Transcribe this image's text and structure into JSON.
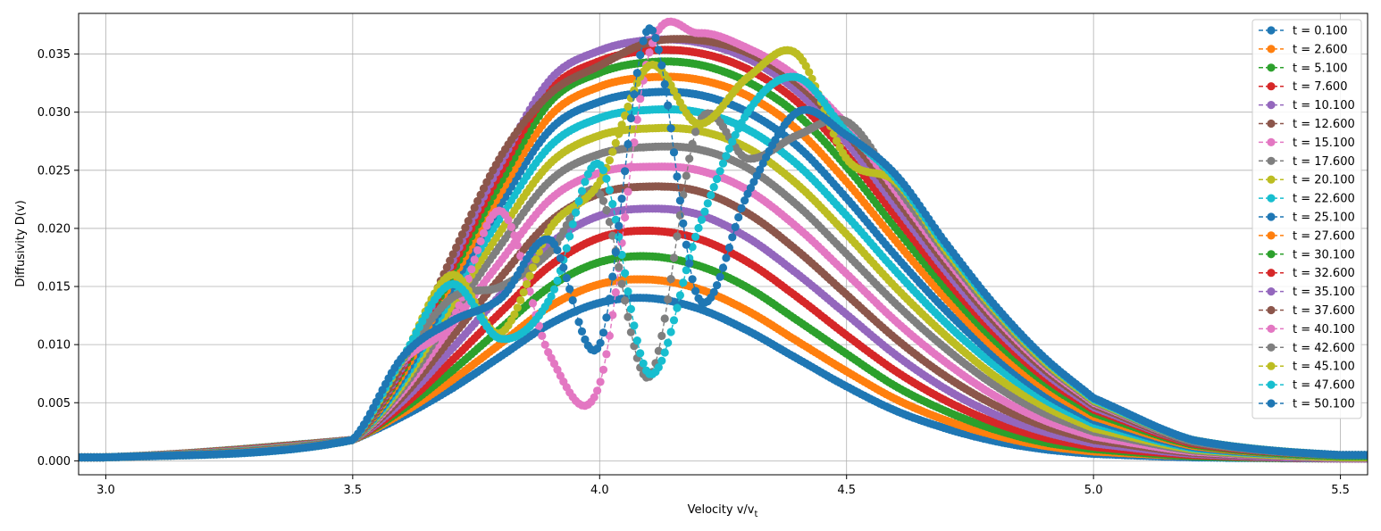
{
  "chart_data": {
    "type": "line",
    "title": "",
    "xlabel": "Velocity v/v",
    "xlabel_sub": "t",
    "ylabel": "Diffusivity D(v)",
    "xlim": [
      2.945,
      5.555
    ],
    "ylim": [
      -0.0012,
      0.0385
    ],
    "xticks": [
      3.0,
      3.5,
      4.0,
      4.5,
      5.0,
      5.5
    ],
    "xtick_labels": [
      "3.0",
      "3.5",
      "4.0",
      "4.5",
      "5.0",
      "5.5"
    ],
    "yticks": [
      0.0,
      0.005,
      0.01,
      0.015,
      0.02,
      0.025,
      0.03,
      0.035
    ],
    "ytick_labels": [
      "0.000",
      "0.005",
      "0.010",
      "0.015",
      "0.020",
      "0.025",
      "0.030",
      "0.035"
    ],
    "grid": true,
    "legend_position": "top-right",
    "x": [
      3.0,
      3.5,
      3.6,
      3.7,
      3.8,
      3.9,
      4.0,
      4.1,
      4.2,
      4.3,
      4.4,
      4.5,
      4.6,
      4.7,
      4.8,
      4.9,
      5.0,
      5.2,
      5.5
    ],
    "series": [
      {
        "name": "t = 0.100",
        "color": "#1f77b4",
        "values": [
          0.0003,
          0.0018,
          0.0038,
          0.0062,
          0.009,
          0.0118,
          0.0136,
          0.014,
          0.0131,
          0.0112,
          0.0088,
          0.0064,
          0.0043,
          0.0028,
          0.0017,
          0.001,
          0.0006,
          0.0003,
          0.0002
        ]
      },
      {
        "name": "t = 2.600",
        "color": "#ff7f0e",
        "values": [
          0.0003,
          0.0018,
          0.0041,
          0.0069,
          0.0101,
          0.0133,
          0.0152,
          0.0156,
          0.0148,
          0.0129,
          0.0103,
          0.0077,
          0.0053,
          0.0035,
          0.0022,
          0.0013,
          0.0008,
          0.0004,
          0.0002
        ]
      },
      {
        "name": "t = 5.100",
        "color": "#2ca02c",
        "values": [
          0.0003,
          0.0018,
          0.0044,
          0.0077,
          0.0114,
          0.015,
          0.0171,
          0.0176,
          0.0168,
          0.0149,
          0.0121,
          0.0092,
          0.0064,
          0.0043,
          0.0027,
          0.0016,
          0.001,
          0.0004,
          0.0002
        ]
      },
      {
        "name": "t = 7.600",
        "color": "#d62728",
        "values": [
          0.0003,
          0.0018,
          0.0047,
          0.0086,
          0.0128,
          0.0168,
          0.0192,
          0.0198,
          0.0191,
          0.0171,
          0.0141,
          0.0108,
          0.0077,
          0.0052,
          0.0033,
          0.002,
          0.0012,
          0.0005,
          0.0002
        ]
      },
      {
        "name": "t = 10.100",
        "color": "#9467bd",
        "values": [
          0.0003,
          0.0018,
          0.0051,
          0.0096,
          0.0143,
          0.0187,
          0.0211,
          0.0217,
          0.0212,
          0.0192,
          0.0161,
          0.0126,
          0.0091,
          0.0062,
          0.004,
          0.0025,
          0.0015,
          0.0006,
          0.0002
        ]
      },
      {
        "name": "t = 12.600",
        "color": "#8c564b",
        "values": [
          0.0003,
          0.0018,
          0.0055,
          0.0106,
          0.0158,
          0.0206,
          0.023,
          0.0236,
          0.0232,
          0.0213,
          0.0181,
          0.0143,
          0.0105,
          0.0073,
          0.0048,
          0.003,
          0.0018,
          0.0007,
          0.0003
        ]
      },
      {
        "name": "t = 15.100",
        "color": "#e377c2",
        "values": [
          0.0003,
          0.0018,
          0.0059,
          0.0116,
          0.0172,
          0.0225,
          0.0248,
          0.0253,
          0.025,
          0.0233,
          0.0201,
          0.0161,
          0.012,
          0.0085,
          0.0056,
          0.0035,
          0.0021,
          0.0008,
          0.0003
        ]
      },
      {
        "name": "t = 17.600",
        "color": "#7f7f7f",
        "values": [
          0.0003,
          0.0018,
          0.0062,
          0.0125,
          0.0186,
          0.0241,
          0.0264,
          0.027,
          0.0268,
          0.0252,
          0.022,
          0.0178,
          0.0135,
          0.0097,
          0.0065,
          0.0041,
          0.0025,
          0.0009,
          0.0003
        ]
      },
      {
        "name": "t = 20.100",
        "color": "#bcbd22",
        "values": [
          0.0003,
          0.0018,
          0.0065,
          0.0133,
          0.0198,
          0.0256,
          0.028,
          0.0286,
          0.0284,
          0.0269,
          0.0238,
          0.0195,
          0.0149,
          0.0108,
          0.0073,
          0.0047,
          0.0028,
          0.001,
          0.0003
        ]
      },
      {
        "name": "t = 22.600",
        "color": "#17becf",
        "values": [
          0.0003,
          0.0018,
          0.0068,
          0.0141,
          0.021,
          0.0271,
          0.0295,
          0.0302,
          0.03,
          0.0285,
          0.0255,
          0.0211,
          0.0163,
          0.0119,
          0.0082,
          0.0053,
          0.0032,
          0.0011,
          0.0004
        ]
      },
      {
        "name": "t = 25.100",
        "color": "#1f77b4",
        "values": [
          0.0003,
          0.0018,
          0.0071,
          0.0148,
          0.0221,
          0.0285,
          0.0309,
          0.0317,
          0.0315,
          0.03,
          0.0271,
          0.0226,
          0.0176,
          0.013,
          0.009,
          0.0058,
          0.0035,
          0.0012,
          0.0004
        ]
      },
      {
        "name": "t = 27.600",
        "color": "#ff7f0e",
        "values": [
          0.0003,
          0.0018,
          0.0074,
          0.0154,
          0.0231,
          0.0297,
          0.0322,
          0.033,
          0.0328,
          0.0314,
          0.0285,
          0.024,
          0.0189,
          0.014,
          0.0097,
          0.0063,
          0.0038,
          0.0013,
          0.0004
        ]
      },
      {
        "name": "t = 30.100",
        "color": "#2ca02c",
        "values": [
          0.0003,
          0.0018,
          0.0077,
          0.016,
          0.024,
          0.0309,
          0.0334,
          0.0343,
          0.0341,
          0.0326,
          0.0298,
          0.0253,
          0.02,
          0.0149,
          0.0104,
          0.0068,
          0.0041,
          0.0014,
          0.0004
        ]
      },
      {
        "name": "t = 32.600",
        "color": "#d62728",
        "values": [
          0.0003,
          0.0018,
          0.0079,
          0.0165,
          0.0249,
          0.0319,
          0.0344,
          0.0353,
          0.0351,
          0.0337,
          0.0309,
          0.0264,
          0.021,
          0.0157,
          0.011,
          0.0072,
          0.0044,
          0.0015,
          0.0005
        ]
      },
      {
        "name": "t = 35.100",
        "color": "#9467bd",
        "values": [
          0.0003,
          0.0018,
          0.0081,
          0.017,
          0.0256,
          0.0328,
          0.0353,
          0.0362,
          0.036,
          0.0346,
          0.0318,
          0.0274,
          0.0219,
          0.0164,
          0.0115,
          0.0076,
          0.0046,
          0.0016,
          0.0005
        ]
      },
      {
        "name": "t = 37.600",
        "color": "#8c564b",
        "values": [
          0.0003,
          0.0018,
          0.0083,
          0.0175,
          0.0262,
          0.0316,
          0.034,
          0.036,
          0.0362,
          0.0351,
          0.0325,
          0.0282,
          0.0226,
          0.017,
          0.012,
          0.0079,
          0.0048,
          0.0016,
          0.0005
        ]
      },
      {
        "name": "t = 40.100",
        "color": "#e377c2",
        "values": [
          0.0003,
          0.0018,
          0.0085,
          0.012,
          0.0215,
          0.009,
          0.0066,
          0.035,
          0.0368,
          0.0355,
          0.033,
          0.0289,
          0.0232,
          0.0175,
          0.0124,
          0.0082,
          0.005,
          0.0017,
          0.0005
        ]
      },
      {
        "name": "t = 42.600",
        "color": "#7f7f7f",
        "values": [
          0.0003,
          0.0018,
          0.0086,
          0.014,
          0.015,
          0.018,
          0.023,
          0.0072,
          0.029,
          0.026,
          0.028,
          0.0292,
          0.0237,
          0.0179,
          0.0127,
          0.0084,
          0.0051,
          0.0017,
          0.0005
        ]
      },
      {
        "name": "t = 45.100",
        "color": "#bcbd22",
        "values": [
          0.0003,
          0.0018,
          0.0087,
          0.016,
          0.011,
          0.02,
          0.024,
          0.034,
          0.029,
          0.033,
          0.035,
          0.026,
          0.024,
          0.0182,
          0.013,
          0.0086,
          0.0052,
          0.0018,
          0.0005
        ]
      },
      {
        "name": "t = 47.600",
        "color": "#17becf",
        "values": [
          0.0003,
          0.0018,
          0.0088,
          0.0152,
          0.0105,
          0.014,
          0.0255,
          0.0075,
          0.02,
          0.03,
          0.033,
          0.0283,
          0.0243,
          0.0185,
          0.0132,
          0.0088,
          0.0053,
          0.0018,
          0.0005
        ]
      },
      {
        "name": "t = 50.100",
        "color": "#1f77b4",
        "values": [
          0.0003,
          0.0018,
          0.0089,
          0.012,
          0.014,
          0.019,
          0.01,
          0.0372,
          0.014,
          0.023,
          0.03,
          0.028,
          0.0246,
          0.0188,
          0.0134,
          0.0089,
          0.0054,
          0.0018,
          0.0005
        ]
      }
    ]
  }
}
